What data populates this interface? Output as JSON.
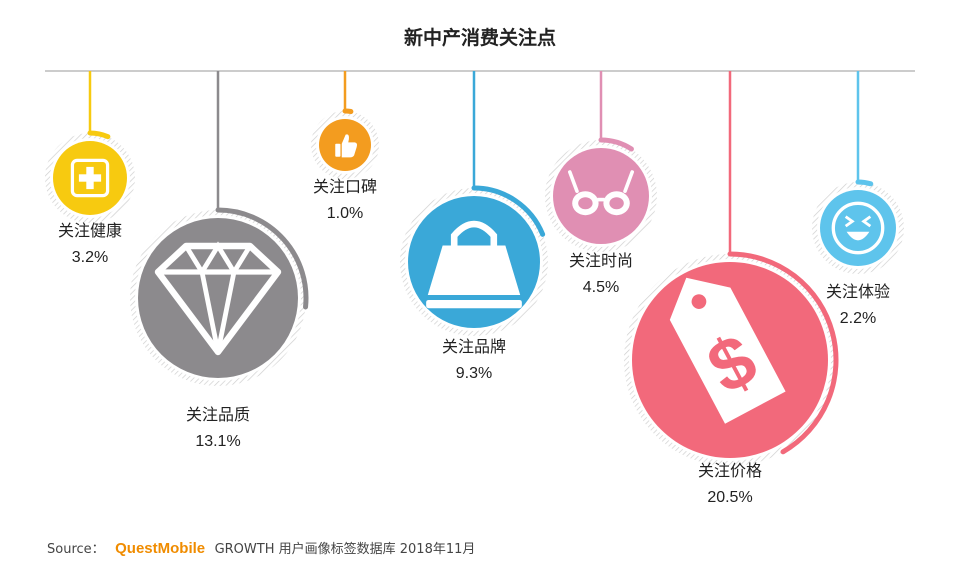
{
  "chart_data": {
    "type": "pie",
    "title": "新中产消费关注点",
    "categories": [
      "关注健康",
      "关注品质",
      "关注口碑",
      "关注品牌",
      "关注时尚",
      "关注价格",
      "关注体验"
    ],
    "values": [
      3.2,
      13.1,
      1.0,
      9.3,
      4.5,
      20.5,
      2.2
    ],
    "value_labels": [
      "3.2%",
      "13.1%",
      "1.0%",
      "9.3%",
      "4.5%",
      "20.5%",
      "2.2%"
    ],
    "unit": "%",
    "colors": [
      "#f7ca10",
      "#8c8a8d",
      "#f39c1f",
      "#3aa8d8",
      "#e08fb3",
      "#f2697b",
      "#5ec4ec"
    ],
    "icons": [
      "plus-icon",
      "diamond-icon",
      "thumbs-up-icon",
      "shopping-bag-icon",
      "glasses-icon",
      "price-tag-icon",
      "smiley-icon"
    ]
  },
  "source": {
    "prefix": "Source：",
    "brand": "QuestMobile",
    "text": "GROWTH 用户画像标签数据库 2018年11月"
  }
}
